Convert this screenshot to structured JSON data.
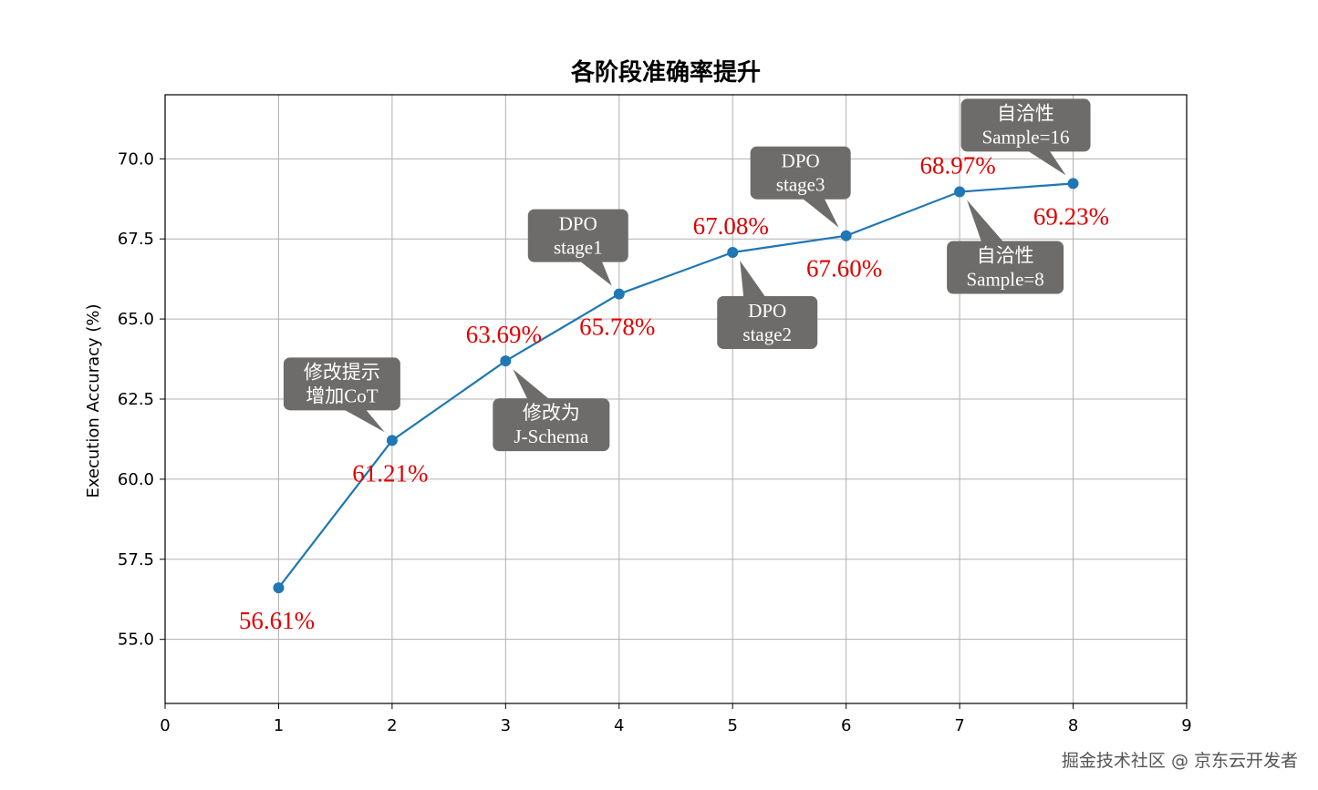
{
  "chart_data": {
    "type": "line",
    "title": "各阶段准确率提升",
    "xlabel": "",
    "ylabel": "Execution Accuracy (%)",
    "xlim": [
      0,
      9
    ],
    "ylim": [
      53,
      72
    ],
    "xticks": [
      "0",
      "1",
      "2",
      "3",
      "4",
      "5",
      "6",
      "7",
      "8",
      "9"
    ],
    "yticks": [
      "55.0",
      "57.5",
      "60.0",
      "62.5",
      "65.0",
      "67.5",
      "70.0"
    ],
    "grid": true,
    "line_color": "#1f77b4",
    "label_color": "#e00000",
    "annotation_bg": "#6e6c6b",
    "series": [
      {
        "x": [
          1,
          2,
          3,
          4,
          5,
          6,
          7,
          8
        ],
        "values": [
          56.61,
          61.21,
          63.69,
          65.78,
          67.08,
          67.6,
          68.97,
          69.23
        ],
        "labels": [
          "56.61%",
          "61.21%",
          "63.69%",
          "65.78%",
          "67.08%",
          "67.60%",
          "68.97%",
          "69.23%"
        ]
      }
    ],
    "annotations": [
      {
        "x": 2,
        "lines": [
          "修改提示",
          "增加CoT"
        ]
      },
      {
        "x": 3,
        "lines": [
          "修改为",
          "J-Schema"
        ]
      },
      {
        "x": 4,
        "lines": [
          "DPO",
          "stage1"
        ]
      },
      {
        "x": 5,
        "lines": [
          "DPO",
          "stage2"
        ]
      },
      {
        "x": 6,
        "lines": [
          "DPO",
          "stage3"
        ]
      },
      {
        "x": 7,
        "lines": [
          "自洽性",
          "Sample=8"
        ]
      },
      {
        "x": 8,
        "lines": [
          "自洽性",
          "Sample=16"
        ]
      }
    ]
  },
  "watermark": "掘金技术社区 @ 京东云开发者"
}
